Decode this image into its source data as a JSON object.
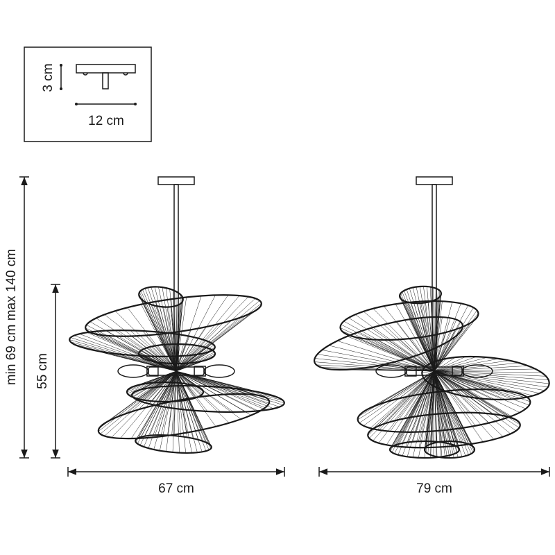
{
  "inset": {
    "height_label": "3 cm",
    "width_label": "12 cm"
  },
  "dimensions": {
    "total_height_label": "min 69 cm max 140 cm",
    "shade_height_label": "55 cm",
    "front_width_label": "67 cm",
    "side_width_label": "79 cm"
  },
  "colors": {
    "line": "#1a1a1a",
    "background": "#ffffff"
  }
}
